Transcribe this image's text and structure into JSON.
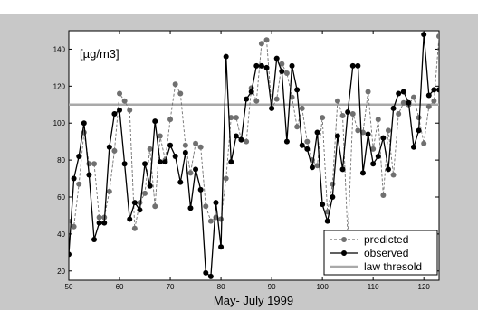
{
  "chart_data": {
    "type": "line",
    "title": "",
    "xlabel": "May- July 1999",
    "ylabel": "",
    "unit_label": "[µg/m3]",
    "xlim": [
      50,
      123
    ],
    "ylim": [
      15,
      150
    ],
    "x_ticks": [
      50,
      60,
      70,
      80,
      90,
      100,
      110,
      120
    ],
    "y_ticks": [
      20,
      40,
      60,
      80,
      100,
      120,
      140
    ],
    "grid": false,
    "legend_position": "bottom-right",
    "x": [
      50,
      51,
      52,
      53,
      54,
      55,
      56,
      57,
      58,
      59,
      60,
      61,
      62,
      63,
      64,
      65,
      66,
      67,
      68,
      69,
      70,
      71,
      72,
      73,
      74,
      75,
      76,
      77,
      78,
      79,
      80,
      81,
      82,
      83,
      84,
      85,
      86,
      87,
      88,
      89,
      90,
      91,
      92,
      93,
      94,
      95,
      96,
      97,
      98,
      99,
      100,
      101,
      102,
      103,
      104,
      105,
      106,
      107,
      108,
      109,
      110,
      111,
      112,
      113,
      114,
      115,
      116,
      117,
      118,
      119,
      120,
      121,
      122,
      123
    ],
    "series": [
      {
        "name": "predicted",
        "color": "#707070",
        "line_style": "dashed",
        "values": [
          47,
          44,
          67,
          95,
          78,
          78,
          49,
          49,
          63,
          85,
          116,
          112,
          107,
          43,
          57,
          62,
          86,
          55,
          93,
          80,
          102,
          121,
          116,
          88,
          73,
          89,
          87,
          55,
          47,
          49,
          48,
          70,
          103,
          103,
          91,
          90,
          119,
          112,
          143,
          145,
          108,
          113,
          132,
          127,
          114,
          98,
          108,
          90,
          80,
          77,
          103,
          52,
          67,
          112,
          104,
          38,
          105,
          96,
          95,
          117,
          86,
          102,
          61,
          96,
          72,
          105,
          111,
          110,
          114,
          103,
          89,
          109,
          112,
          147
        ]
      },
      {
        "name": "observed",
        "color": "#000000",
        "line_style": "solid",
        "values": [
          29,
          70,
          82,
          100,
          72,
          37,
          46,
          46,
          87,
          105,
          107,
          78,
          48,
          57,
          53,
          78,
          66,
          101,
          79,
          79,
          88,
          82,
          68,
          84,
          54,
          75,
          64,
          19,
          17,
          57,
          33,
          136,
          79,
          93,
          91,
          113,
          117,
          131,
          131,
          130,
          108,
          135,
          128,
          90,
          131,
          118,
          88,
          86,
          76,
          95,
          56,
          47,
          60,
          93,
          75,
          106,
          131,
          131,
          73,
          94,
          78,
          82,
          92,
          75,
          108,
          116,
          117,
          111,
          87,
          96,
          148,
          115,
          118,
          118
        ]
      },
      {
        "name": "law thresold",
        "color": "#a9a9a9",
        "line_style": "solid",
        "constant": 110
      }
    ]
  }
}
